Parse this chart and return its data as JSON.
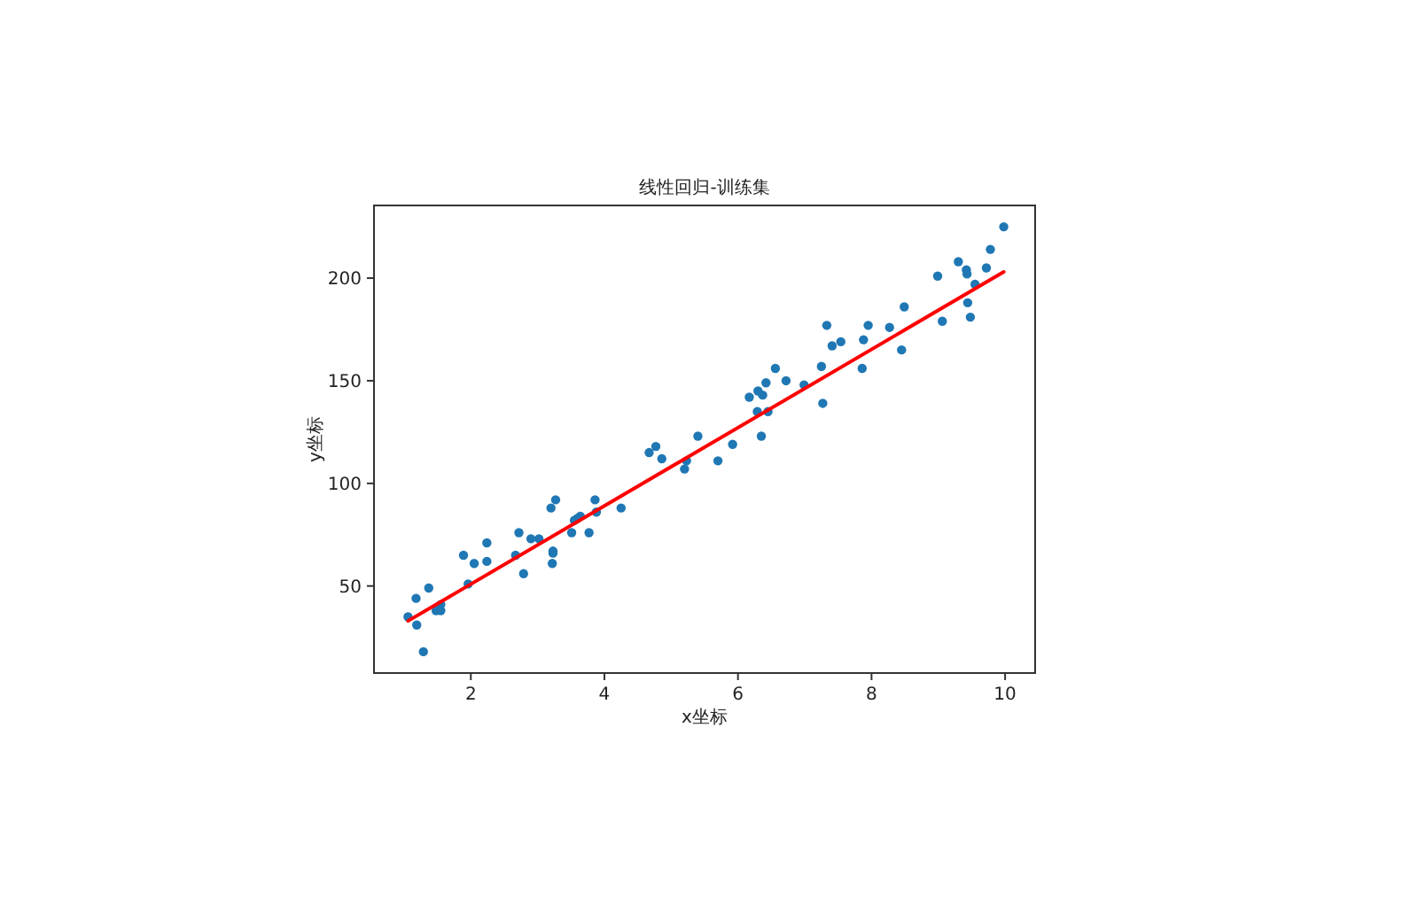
{
  "chart_data": {
    "type": "scatter",
    "title": "线性回归-训练集",
    "xlabel": "x坐标",
    "ylabel": "y坐标",
    "xlim": [
      0.55,
      10.45
    ],
    "ylim": [
      7.6,
      235.4
    ],
    "xticks": [
      2,
      4,
      6,
      8,
      10
    ],
    "yticks": [
      50,
      100,
      150,
      200
    ],
    "grid": false,
    "series": [
      {
        "color": "#1f77b4",
        "marker": "circle",
        "x": [
          1.06,
          1.18,
          1.19,
          1.29,
          1.37,
          1.48,
          1.55,
          1.55,
          1.89,
          1.96,
          2.05,
          2.24,
          2.24,
          2.67,
          2.72,
          2.79,
          2.9,
          3.02,
          3.2,
          3.27,
          3.23,
          3.23,
          3.22,
          3.51,
          3.55,
          3.6,
          3.64,
          3.77,
          3.86,
          3.88,
          4.25,
          4.67,
          4.77,
          4.86,
          5.2,
          5.23,
          5.4,
          5.7,
          5.92,
          6.17,
          6.29,
          6.3,
          6.37,
          6.35,
          6.42,
          6.45,
          6.56,
          6.72,
          6.99,
          7.25,
          7.27,
          7.33,
          7.41,
          7.54,
          7.86,
          7.88,
          7.95,
          8.27,
          8.45,
          8.49,
          8.99,
          9.06,
          9.3,
          9.42,
          9.43,
          9.44,
          9.48,
          9.55,
          9.72,
          9.78,
          9.98
        ],
        "values": [
          35,
          44,
          31,
          18,
          49,
          38,
          38,
          41,
          65,
          51,
          61,
          71,
          62,
          65,
          76,
          56,
          73,
          73,
          88,
          92,
          67,
          66,
          61,
          76,
          82,
          83,
          84,
          76,
          92,
          86,
          88,
          115,
          118,
          112,
          107,
          111,
          123,
          111,
          119,
          142,
          135,
          145,
          143,
          123,
          149,
          135,
          156,
          150,
          148,
          157,
          139,
          177,
          167,
          169,
          156,
          170,
          177,
          176,
          165,
          186,
          201,
          179,
          208,
          204,
          202,
          188,
          181,
          197,
          205,
          214,
          225
        ]
      },
      {
        "type": "line",
        "color": "#ff0000",
        "marker": "none",
        "x": [
          1.06,
          9.98
        ],
        "values": [
          33,
          203
        ],
        "line_style": "solid"
      }
    ]
  }
}
